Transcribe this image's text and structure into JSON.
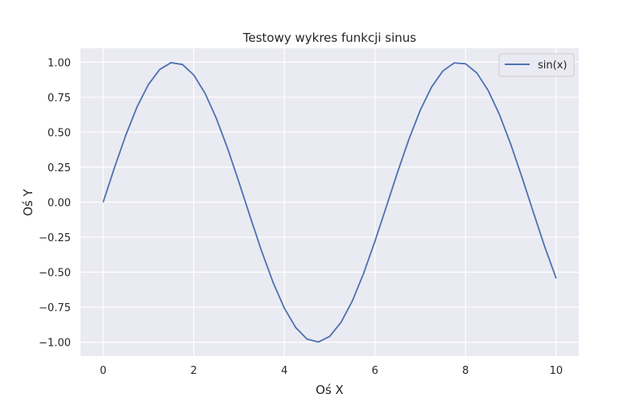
{
  "chart_data": {
    "type": "line",
    "title": "Testowy wykres funkcji sinus",
    "xlabel": "Oś X",
    "ylabel": "Oś Y",
    "xlim": [
      -0.5,
      10.5
    ],
    "ylim": [
      -1.1,
      1.1
    ],
    "xticks": [
      0,
      2,
      4,
      6,
      8,
      10
    ],
    "xtick_labels": [
      "0",
      "2",
      "4",
      "6",
      "8",
      "10"
    ],
    "yticks": [
      -1.0,
      -0.75,
      -0.5,
      -0.25,
      0.0,
      0.25,
      0.5,
      0.75,
      1.0
    ],
    "ytick_labels": [
      "−1.00",
      "−0.75",
      "−0.50",
      "−0.25",
      "0.00",
      "0.25",
      "0.50",
      "0.75",
      "1.00"
    ],
    "grid": true,
    "legend_position": "top-right",
    "series": [
      {
        "name": "sin(x)",
        "color": "#4c72b0",
        "x": [
          0,
          0.25,
          0.5,
          0.75,
          1,
          1.25,
          1.5,
          1.75,
          2,
          2.25,
          2.5,
          2.75,
          3,
          3.25,
          3.5,
          3.75,
          4,
          4.25,
          4.5,
          4.75,
          5,
          5.25,
          5.5,
          5.75,
          6,
          6.25,
          6.5,
          6.75,
          7,
          7.25,
          7.5,
          7.75,
          8,
          8.25,
          8.5,
          8.75,
          9,
          9.25,
          9.5,
          9.75,
          10
        ],
        "y": [
          0,
          0.247,
          0.479,
          0.682,
          0.841,
          0.949,
          0.997,
          0.984,
          0.909,
          0.778,
          0.598,
          0.382,
          0.141,
          -0.108,
          -0.351,
          -0.572,
          -0.757,
          -0.895,
          -0.978,
          -0.999,
          -0.959,
          -0.859,
          -0.706,
          -0.508,
          -0.279,
          -0.033,
          0.215,
          0.45,
          0.657,
          0.823,
          0.938,
          0.995,
          0.989,
          0.923,
          0.798,
          0.625,
          0.412,
          0.174,
          -0.075,
          -0.32,
          -0.544
        ]
      }
    ]
  },
  "colors": {
    "plot_background": "#eaeaf2",
    "grid": "#ffffff",
    "text": "#262626"
  }
}
